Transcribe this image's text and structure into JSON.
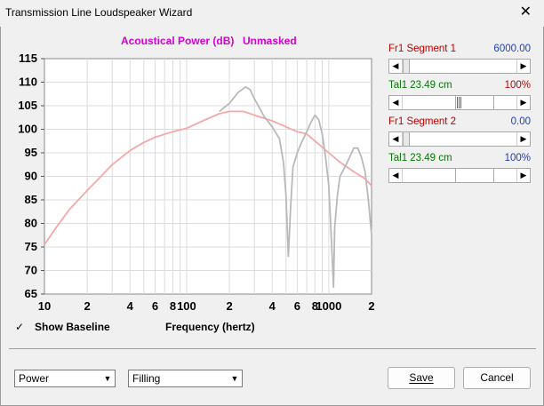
{
  "window": {
    "title": "Transmission Line Loudspeaker Wizard",
    "close_label": "✕"
  },
  "chart_title": {
    "left": "Acoustical Power (dB)",
    "right": "Unmasked"
  },
  "segments": [
    {
      "label": "Fr1  Segment 1",
      "value": "6000.00",
      "label_color": "#c00000",
      "value_color": "#1a3fbf"
    },
    {
      "label": "Tal1  23.49 cm",
      "value": "100%",
      "label_color": "#007a00",
      "value_color": "#c00000"
    },
    {
      "label": "Fr1  Segment 2",
      "value": "0.00",
      "label_color": "#c00000",
      "value_color": "#1a3fbf"
    },
    {
      "label": "Tal1  23.49 cm",
      "value": "100%",
      "label_color": "#007a00",
      "value_color": "#1a3fbf"
    }
  ],
  "baseline": {
    "label": "Show Baseline",
    "checked": "✓"
  },
  "xaxis_label": "Frequency (hertz)",
  "dropdowns": {
    "left": "Power",
    "right": "Filling"
  },
  "buttons": {
    "save": "Save",
    "cancel": "Cancel"
  },
  "chart_data": {
    "type": "line",
    "title": "Acoustical Power (dB)",
    "subtitle": "Unmasked",
    "xlabel": "Frequency (hertz)",
    "ylabel": "",
    "x_scale": "log",
    "xlim": [
      10,
      2000
    ],
    "ylim": [
      65,
      115
    ],
    "grid": true,
    "y_ticks": [
      65,
      70,
      75,
      80,
      85,
      90,
      95,
      100,
      105,
      110,
      115
    ],
    "x_ticks": [
      {
        "v": 10,
        "label": "10"
      },
      {
        "v": 20,
        "label": "2"
      },
      {
        "v": 40,
        "label": "4"
      },
      {
        "v": 60,
        "label": "6"
      },
      {
        "v": 80,
        "label": "8"
      },
      {
        "v": 100,
        "label": "100"
      },
      {
        "v": 200,
        "label": "2"
      },
      {
        "v": 400,
        "label": "4"
      },
      {
        "v": 600,
        "label": "6"
      },
      {
        "v": 800,
        "label": "8"
      },
      {
        "v": 1000,
        "label": "1000"
      },
      {
        "v": 2000,
        "label": "2"
      }
    ],
    "series": [
      {
        "color": "#f4a8a8",
        "x": [
          10,
          12,
          15,
          20,
          25,
          30,
          40,
          50,
          60,
          80,
          100,
          130,
          170,
          200,
          250,
          300,
          400,
          500,
          600,
          700,
          800,
          1000,
          1200,
          1500,
          1800,
          2000
        ],
        "y": [
          75.5,
          79,
          83,
          87,
          90,
          92.5,
          95.5,
          97.2,
          98.3,
          99.5,
          100.2,
          101.8,
          103.3,
          103.8,
          103.8,
          103,
          101.8,
          100.5,
          99.5,
          99,
          97.5,
          95,
          93,
          91,
          89.5,
          88
        ]
      },
      {
        "color": "#b9b9b9",
        "x": [
          170,
          200,
          230,
          260,
          280,
          300,
          350,
          400,
          450,
          480,
          500,
          520,
          540,
          560,
          600,
          650,
          700,
          750,
          800,
          850,
          900,
          950,
          1000,
          1050,
          1080,
          1100,
          1150,
          1200,
          1300,
          1400,
          1500,
          1600,
          1700,
          1800,
          1900,
          2000
        ],
        "y": [
          103.8,
          105.5,
          107.8,
          109,
          108.4,
          106.5,
          102.8,
          100.5,
          98,
          93,
          86,
          73,
          84,
          92,
          95,
          97.5,
          99.5,
          101.5,
          103,
          102,
          99,
          94,
          88,
          75,
          66.5,
          79,
          86,
          90,
          92,
          94,
          96,
          96,
          94,
          91,
          85,
          77.5
        ]
      }
    ]
  }
}
